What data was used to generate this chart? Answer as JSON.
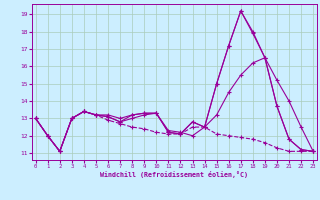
{
  "xlabel": "Windchill (Refroidissement éolien,°C)",
  "bg_color": "#cceeff",
  "line_color": "#990099",
  "grid_color": "#aaccbb",
  "series": {
    "xs": [
      0,
      1,
      2,
      3,
      4,
      5,
      6,
      7,
      8,
      9,
      10,
      11,
      12,
      13,
      14,
      15,
      16,
      17,
      18,
      19,
      20,
      21,
      22,
      23
    ],
    "s1": [
      13.0,
      12.0,
      11.1,
      13.0,
      13.4,
      13.2,
      13.1,
      12.8,
      13.2,
      13.3,
      13.3,
      12.2,
      12.1,
      12.8,
      12.5,
      15.0,
      17.2,
      19.2,
      17.9,
      16.5,
      13.7,
      11.8,
      11.2,
      11.1
    ],
    "s2": [
      13.0,
      12.0,
      11.1,
      13.0,
      13.4,
      13.2,
      12.9,
      12.7,
      12.5,
      12.4,
      12.2,
      12.1,
      12.1,
      12.5,
      12.5,
      12.1,
      12.0,
      11.9,
      11.8,
      11.6,
      11.3,
      11.1,
      11.1,
      11.1
    ],
    "s3": [
      13.0,
      12.0,
      11.1,
      13.0,
      13.4,
      13.2,
      13.1,
      12.8,
      13.0,
      13.2,
      13.3,
      12.3,
      12.2,
      12.0,
      12.5,
      13.2,
      14.5,
      15.5,
      16.2,
      16.5,
      15.2,
      14.0,
      12.5,
      11.1
    ],
    "s4": [
      13.0,
      12.0,
      11.1,
      13.0,
      13.4,
      13.2,
      13.2,
      13.0,
      13.2,
      13.3,
      13.3,
      12.2,
      12.1,
      12.8,
      12.5,
      15.0,
      17.2,
      19.2,
      18.0,
      16.5,
      13.7,
      11.8,
      11.2,
      11.1
    ]
  },
  "xlim": [
    -0.3,
    23.3
  ],
  "ylim": [
    10.6,
    19.6
  ],
  "yticks": [
    11,
    12,
    13,
    14,
    15,
    16,
    17,
    18,
    19
  ],
  "xticks": [
    0,
    1,
    2,
    3,
    4,
    5,
    6,
    7,
    8,
    9,
    10,
    11,
    12,
    13,
    14,
    15,
    16,
    17,
    18,
    19,
    20,
    21,
    22,
    23
  ]
}
